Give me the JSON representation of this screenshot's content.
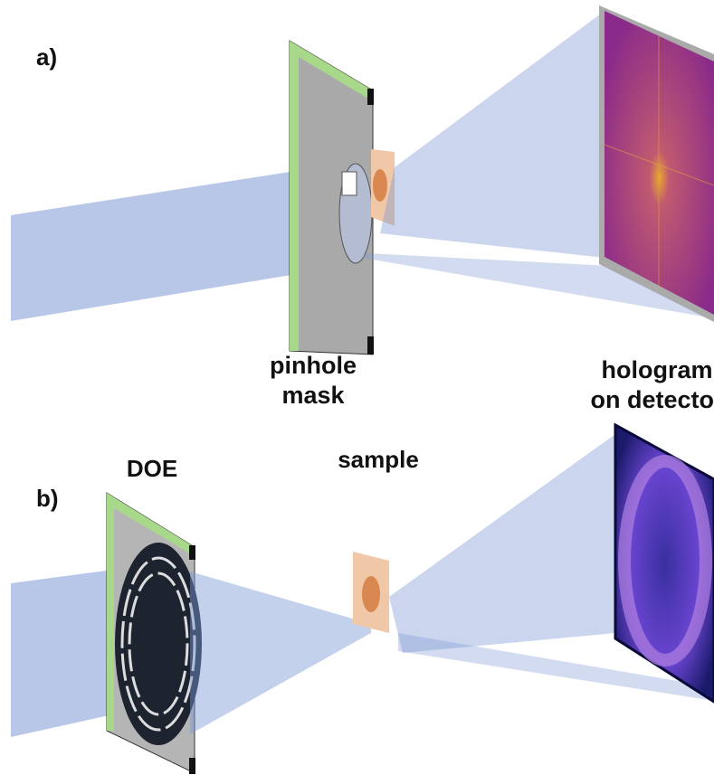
{
  "panel_a": {
    "label": "a)",
    "mask_label": [
      "pinhole",
      "mask"
    ],
    "detector_label": [
      "hologram",
      "on detector"
    ]
  },
  "panel_b": {
    "label": "b)",
    "doe_label": "DOE",
    "sample_label": "sample"
  }
}
